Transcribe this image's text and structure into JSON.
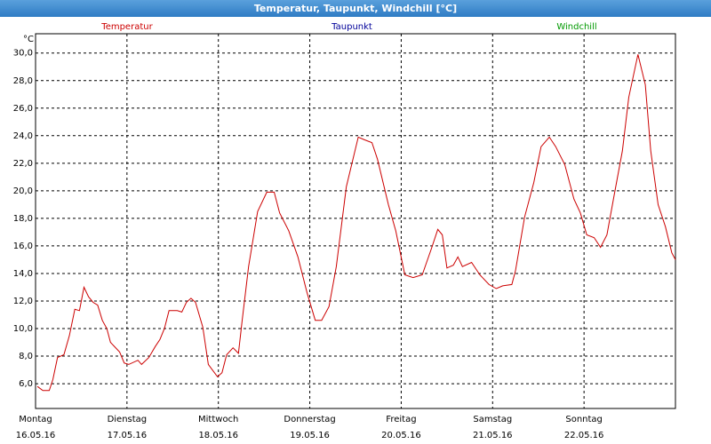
{
  "chart_data": {
    "type": "line",
    "title": "Temperatur, Taupunkt, Windchill [°C]",
    "y_unit": "°C",
    "x": [
      0.02,
      0.08,
      0.15,
      0.19,
      0.24,
      0.31,
      0.37,
      0.43,
      0.48,
      0.53,
      0.58,
      0.63,
      0.68,
      0.73,
      0.78,
      0.82,
      0.92,
      0.97,
      1.02,
      1.12,
      1.16,
      1.24,
      1.31,
      1.36,
      1.41,
      1.46,
      1.55,
      1.6,
      1.65,
      1.7,
      1.75,
      1.83,
      1.89,
      1.99,
      2.04,
      2.09,
      2.16,
      2.22,
      2.26,
      2.33,
      2.43,
      2.53,
      2.61,
      2.67,
      2.77,
      2.87,
      2.97,
      3.06,
      3.13,
      3.21,
      3.29,
      3.4,
      3.53,
      3.6,
      3.68,
      3.74,
      3.86,
      3.94,
      4.04,
      4.13,
      4.23,
      4.33,
      4.4,
      4.45,
      4.5,
      4.57,
      4.62,
      4.67,
      4.77,
      4.86,
      4.96,
      5.04,
      5.11,
      5.21,
      5.25,
      5.35,
      5.45,
      5.53,
      5.62,
      5.69,
      5.79,
      5.89,
      5.96,
      6.03,
      6.11,
      6.18,
      6.25,
      6.33,
      6.42,
      6.49,
      6.59,
      6.67,
      6.73,
      6.81,
      6.89,
      6.96,
      7.0
    ],
    "series": [
      {
        "name": "Temperatur",
        "color": "#cc0000",
        "values": [
          5.8,
          5.5,
          5.5,
          6.3,
          7.9,
          8.1,
          9.5,
          11.4,
          11.3,
          13.0,
          12.3,
          11.9,
          11.7,
          10.6,
          10.0,
          9.0,
          8.3,
          7.5,
          7.4,
          7.7,
          7.4,
          7.9,
          8.7,
          9.2,
          10.0,
          11.3,
          11.3,
          11.2,
          11.9,
          12.2,
          11.9,
          10.1,
          7.4,
          6.5,
          6.8,
          8.1,
          8.6,
          8.2,
          10.6,
          14.5,
          18.5,
          19.9,
          19.9,
          18.4,
          17.1,
          15.2,
          12.6,
          10.6,
          10.6,
          11.6,
          14.5,
          20.3,
          23.9,
          23.7,
          23.5,
          22.3,
          19.0,
          17.1,
          13.9,
          13.7,
          13.9,
          15.8,
          17.2,
          16.8,
          14.4,
          14.6,
          15.2,
          14.5,
          14.8,
          13.9,
          13.2,
          12.9,
          13.1,
          13.2,
          14.2,
          18.1,
          20.6,
          23.2,
          23.9,
          23.2,
          21.9,
          19.4,
          18.4,
          16.8,
          16.6,
          15.9,
          16.8,
          19.7,
          22.9,
          26.8,
          29.9,
          27.7,
          22.9,
          19.0,
          17.4,
          15.5,
          15.0
        ]
      },
      {
        "name": "Taupunkt",
        "color": "#000099"
      },
      {
        "name": "Windchill",
        "color": "#009900"
      }
    ],
    "xlim": [
      0,
      7
    ],
    "xticks": [
      {
        "value": 0,
        "label": [
          "Montag",
          "16.05.16"
        ]
      },
      {
        "value": 1,
        "label": [
          "Dienstag",
          "17.05.16"
        ]
      },
      {
        "value": 2,
        "label": [
          "Mittwoch",
          "18.05.16"
        ]
      },
      {
        "value": 3,
        "label": [
          "Donnerstag",
          "19.05.16"
        ]
      },
      {
        "value": 4,
        "label": [
          "Freitag",
          "20.05.16"
        ]
      },
      {
        "value": 5,
        "label": [
          "Samstag",
          "21.05.16"
        ]
      },
      {
        "value": 6,
        "label": [
          "Sonntag",
          "22.05.16"
        ]
      }
    ],
    "ylim": [
      4.2,
      31.4
    ],
    "yticks": [
      {
        "value": 6,
        "label": "6,0"
      },
      {
        "value": 8,
        "label": "8,0"
      },
      {
        "value": 10,
        "label": "10,0"
      },
      {
        "value": 12,
        "label": "12,0"
      },
      {
        "value": 14,
        "label": "14,0"
      },
      {
        "value": 16,
        "label": "16,0"
      },
      {
        "value": 18,
        "label": "18,0"
      },
      {
        "value": 20,
        "label": "20,0"
      },
      {
        "value": 22,
        "label": "22,0"
      },
      {
        "value": 24,
        "label": "24,0"
      },
      {
        "value": 26,
        "label": "26,0"
      },
      {
        "value": 28,
        "label": "28,0"
      },
      {
        "value": 30,
        "label": "30,0"
      }
    ],
    "grid": true
  }
}
